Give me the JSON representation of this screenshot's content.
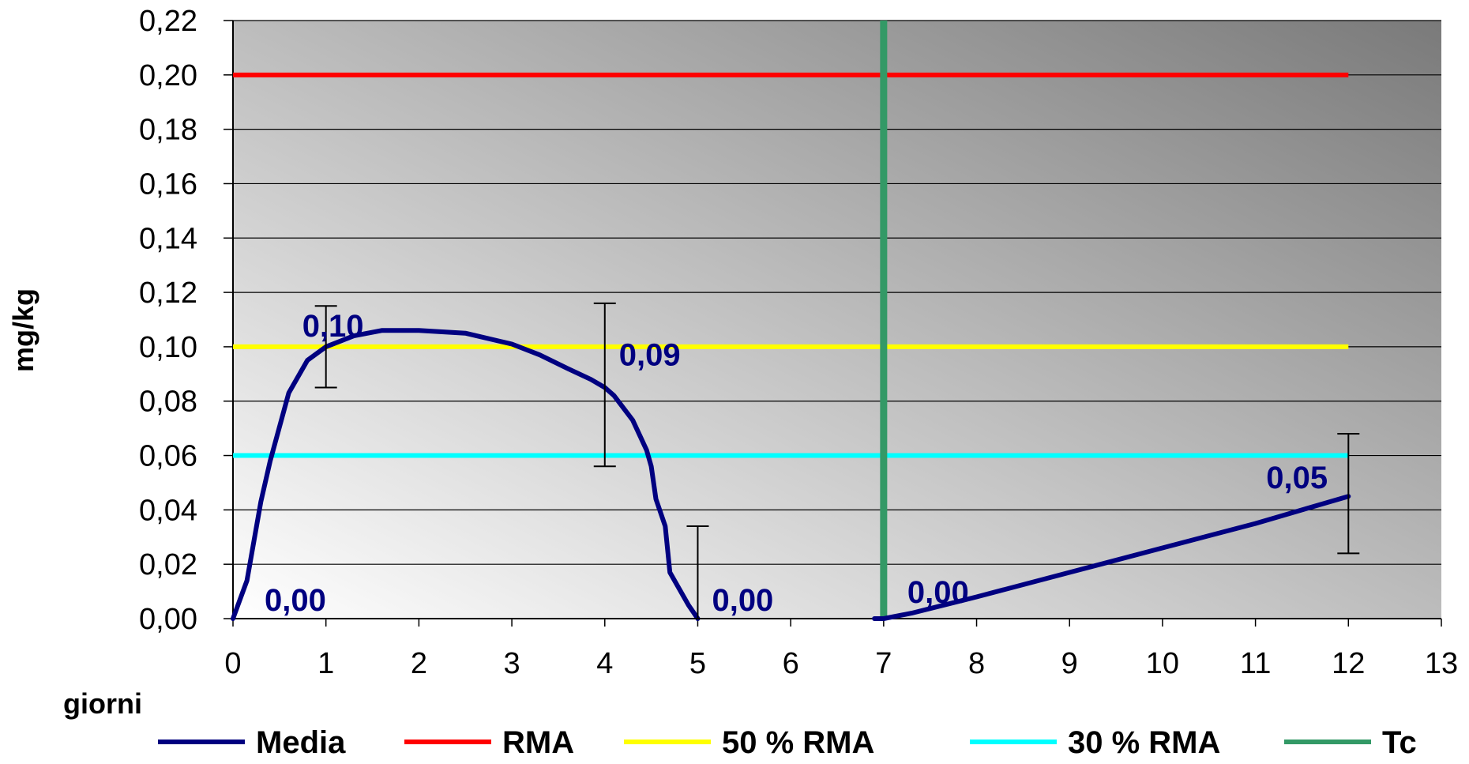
{
  "chart_data": {
    "type": "line",
    "xlabel": "giorni",
    "ylabel": "mg/kg",
    "xlim": [
      0,
      13
    ],
    "ylim": [
      0,
      0.22
    ],
    "x_ticks": [
      "0",
      "1",
      "2",
      "3",
      "4",
      "5",
      "6",
      "7",
      "8",
      "9",
      "10",
      "11",
      "12",
      "13"
    ],
    "y_ticks": [
      "0,00",
      "0,02",
      "0,04",
      "0,06",
      "0,08",
      "0,10",
      "0,12",
      "0,14",
      "0,16",
      "0,18",
      "0,20",
      "0,22"
    ],
    "grid": "horizontal",
    "legend_position": "bottom",
    "series": [
      {
        "name": "Media",
        "color": "#000080",
        "segments": [
          [
            [
              0,
              0
            ],
            [
              0.15,
              0.014
            ],
            [
              0.3,
              0.043
            ],
            [
              0.4,
              0.058
            ],
            [
              0.6,
              0.083
            ],
            [
              0.8,
              0.095
            ],
            [
              1,
              0.1
            ],
            [
              1.3,
              0.104
            ],
            [
              1.6,
              0.106
            ],
            [
              2,
              0.106
            ],
            [
              2.5,
              0.105
            ],
            [
              3,
              0.101
            ],
            [
              3.3,
              0.097
            ],
            [
              3.6,
              0.092
            ],
            [
              3.85,
              0.088
            ],
            [
              4,
              0.085
            ],
            [
              4.1,
              0.082
            ],
            [
              4.3,
              0.073
            ],
            [
              4.45,
              0.062
            ],
            [
              4.5,
              0.056
            ],
            [
              4.55,
              0.044
            ],
            [
              4.65,
              0.034
            ],
            [
              4.7,
              0.017
            ],
            [
              4.9,
              0.005
            ],
            [
              5,
              0
            ]
          ],
          [
            [
              6.9,
              0
            ],
            [
              7,
              0
            ],
            [
              7.3,
              0.002
            ],
            [
              8,
              0.008
            ],
            [
              9,
              0.017
            ],
            [
              10,
              0.026
            ],
            [
              11,
              0.035
            ],
            [
              11.5,
              0.04
            ],
            [
              12,
              0.045
            ]
          ]
        ],
        "points": [
          {
            "x": 0,
            "y": 0,
            "label": "0,00"
          },
          {
            "x": 1,
            "y": 0.1,
            "label": "0,10",
            "error_low": 0.085,
            "error_high": 0.115
          },
          {
            "x": 4,
            "y": 0.085,
            "label": "0,09",
            "error_low": 0.056,
            "error_high": 0.116
          },
          {
            "x": 5,
            "y": 0,
            "label": "0,00",
            "error_low": 0,
            "error_high": 0.034
          },
          {
            "x": 7,
            "y": 0,
            "label": "0,00"
          },
          {
            "x": 12,
            "y": 0.045,
            "label": "0,05",
            "error_low": 0.024,
            "error_high": 0.068
          }
        ]
      },
      {
        "name": "RMA",
        "color": "#FF0000",
        "x": [
          0,
          12
        ],
        "y": [
          0.2,
          0.2
        ]
      },
      {
        "name": "50 % RMA",
        "color": "#FFFF00",
        "x": [
          0,
          12
        ],
        "y": [
          0.1,
          0.1
        ]
      },
      {
        "name": "30 % RMA",
        "color": "#00FFFF",
        "x": [
          0,
          12
        ],
        "y": [
          0.06,
          0.06
        ]
      },
      {
        "name": "Tc",
        "color": "#339966",
        "x": [
          7,
          7
        ],
        "y": [
          0,
          0.22
        ]
      }
    ]
  }
}
